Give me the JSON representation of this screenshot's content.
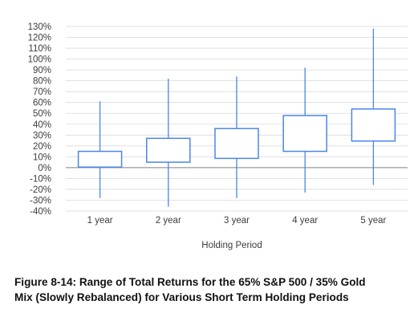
{
  "chart_data": {
    "type": "box",
    "xlabel": "Holding Period",
    "ylabel": "",
    "ylim": [
      -40,
      130
    ],
    "ytick_labels": [
      "-40%",
      "-30%",
      "-20%",
      "-10%",
      "0%",
      "10%",
      "20%",
      "30%",
      "40%",
      "50%",
      "60%",
      "70%",
      "80%",
      "90%",
      "100%",
      "110%",
      "120%",
      "130%"
    ],
    "ytick_values": [
      -40,
      -30,
      -20,
      -10,
      0,
      10,
      20,
      30,
      40,
      50,
      60,
      70,
      80,
      90,
      100,
      110,
      120,
      130
    ],
    "categories": [
      "1 year",
      "2 year",
      "3 year",
      "4 year",
      "5 year"
    ],
    "boxes": [
      {
        "min": -28,
        "q1": 0.5,
        "q3": 15,
        "max": 61
      },
      {
        "min": -36,
        "q1": 5,
        "q3": 27,
        "max": 82
      },
      {
        "min": -28,
        "q1": 8.5,
        "q3": 36,
        "max": 84
      },
      {
        "min": -23,
        "q1": 15,
        "q3": 48,
        "max": 92
      },
      {
        "min": -16,
        "q1": 24.5,
        "q3": 54,
        "max": 128
      }
    ],
    "grid": true,
    "box_color": "#4a86e8",
    "grid_color": "#d9d9d9",
    "zero_line_color": "#999999"
  },
  "caption": {
    "line1": "Figure 8-14: Range of Total Returns for the 65% S&P 500 / 35% Gold",
    "line2": "Mix (Slowly Rebalanced) for Various Short Term Holding Periods"
  }
}
